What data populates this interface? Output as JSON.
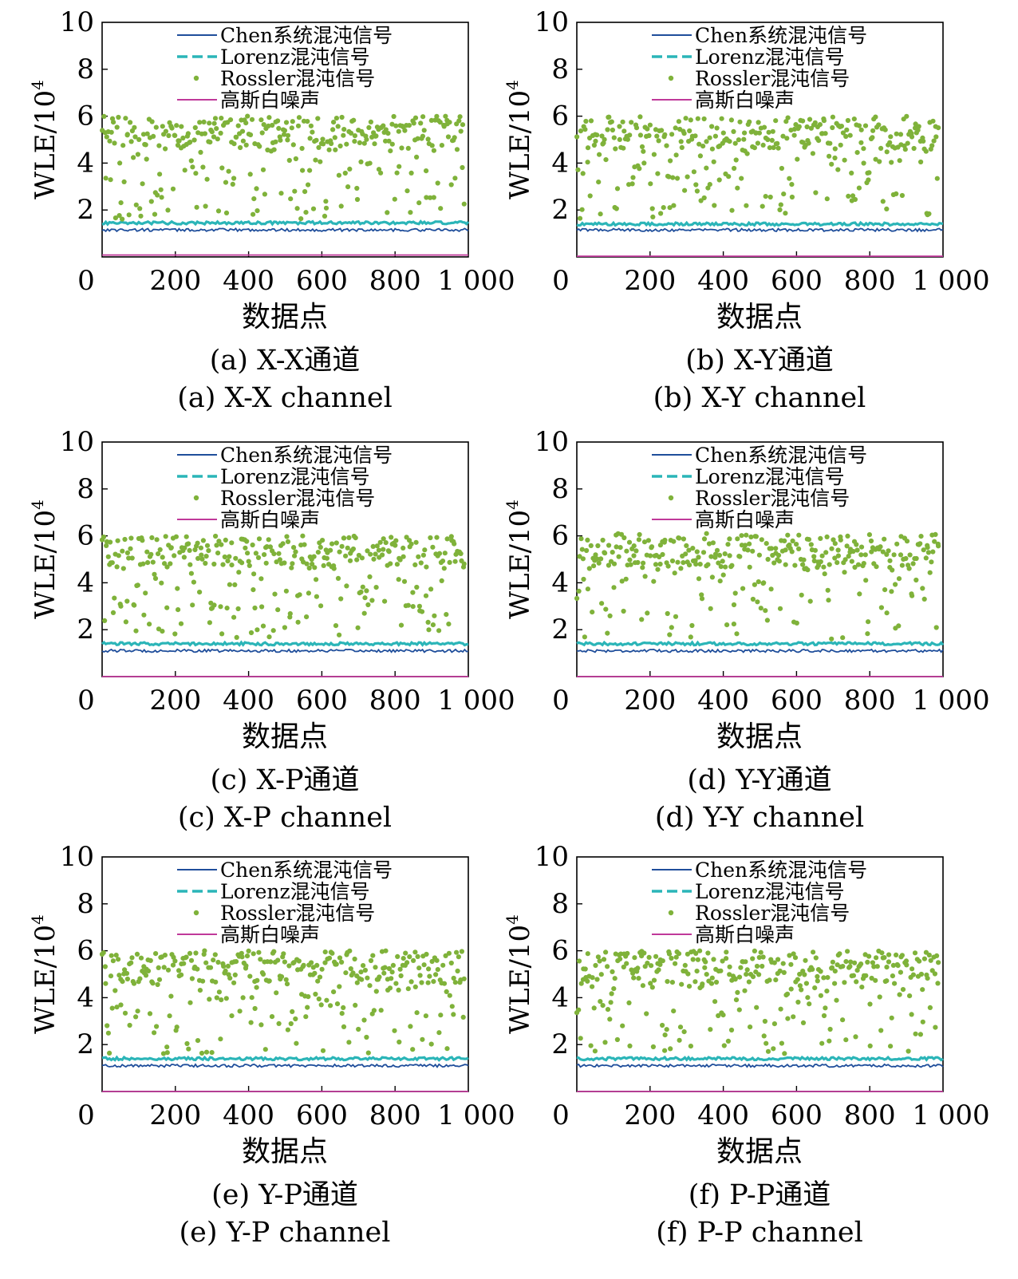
{
  "colors": {
    "chen": "#1f4e9b",
    "lorenz": "#2bb5b8",
    "rossler": "#7fb23a",
    "gauss": "#c0399a",
    "axis": "#000000"
  },
  "chart_data": [
    {
      "type": "line",
      "panel": "a",
      "caption_cn": "(a) X-X通道",
      "caption_en": "(a) X-X channel",
      "xlabel": "数据点",
      "ylabel": "WLE/10",
      "ylabel_sup": "4",
      "xlim": [
        0,
        1000
      ],
      "ylim": [
        0,
        10
      ],
      "xticks": [
        "0",
        "200",
        "400",
        "600",
        "800",
        "1 000"
      ],
      "yticks": [
        "2",
        "4",
        "6",
        "8",
        "10"
      ],
      "series": [
        {
          "name": "Chen系统混沌信号",
          "style": "solid",
          "level": 1.15
        },
        {
          "name": "Lorenz混沌信号",
          "style": "dashed",
          "level": 1.45
        },
        {
          "name": "Rossler混沌信号",
          "style": "dots",
          "range": [
            1.6,
            6.0
          ],
          "center": 5.2
        },
        {
          "name": "高斯白噪声",
          "style": "solid",
          "level": 0.08
        }
      ]
    },
    {
      "type": "line",
      "panel": "b",
      "caption_cn": "(b) X-Y通道",
      "caption_en": "(b) X-Y channel",
      "xlabel": "数据点",
      "ylabel": "WLE/10",
      "ylabel_sup": "4",
      "xlim": [
        0,
        1000
      ],
      "ylim": [
        0,
        10
      ],
      "xticks": [
        "0",
        "200",
        "400",
        "600",
        "800",
        "1 000"
      ],
      "yticks": [
        "2",
        "4",
        "6",
        "8",
        "10"
      ],
      "series": [
        {
          "name": "Chen系统混沌信号",
          "style": "solid",
          "level": 1.15
        },
        {
          "name": "Lorenz混沌信号",
          "style": "dashed",
          "level": 1.4
        },
        {
          "name": "Rossler混沌信号",
          "style": "dots",
          "range": [
            1.6,
            6.0
          ],
          "center": 5.2
        },
        {
          "name": "高斯白噪声",
          "style": "solid",
          "level": 0.03
        }
      ]
    },
    {
      "type": "line",
      "panel": "c",
      "caption_cn": "(c) X-P通道",
      "caption_en": "(c) X-P channel",
      "xlabel": "数据点",
      "ylabel": "WLE/10",
      "ylabel_sup": "4",
      "xlim": [
        0,
        1000
      ],
      "ylim": [
        0,
        10
      ],
      "xticks": [
        "0",
        "200",
        "400",
        "600",
        "800",
        "1 000"
      ],
      "yticks": [
        "2",
        "4",
        "6",
        "8",
        "10"
      ],
      "series": [
        {
          "name": "Chen系统混沌信号",
          "style": "solid",
          "level": 1.1
        },
        {
          "name": "Lorenz混沌信号",
          "style": "dashed",
          "level": 1.4
        },
        {
          "name": "Rossler混沌信号",
          "style": "dots",
          "range": [
            1.6,
            6.0
          ],
          "center": 5.2
        },
        {
          "name": "高斯白噪声",
          "style": "solid",
          "level": 0.0
        }
      ]
    },
    {
      "type": "line",
      "panel": "d",
      "caption_cn": "(d) Y-Y通道",
      "caption_en": "(d) Y-Y channel",
      "xlabel": "数据点",
      "ylabel": "WLE/10",
      "ylabel_sup": "4",
      "xlim": [
        0,
        1000
      ],
      "ylim": [
        0,
        10
      ],
      "xticks": [
        "0",
        "200",
        "400",
        "600",
        "800",
        "1 000"
      ],
      "yticks": [
        "2",
        "4",
        "6",
        "8",
        "10"
      ],
      "series": [
        {
          "name": "Chen系统混沌信号",
          "style": "solid",
          "level": 1.1
        },
        {
          "name": "Lorenz混沌信号",
          "style": "dashed",
          "level": 1.4
        },
        {
          "name": "Rossler混沌信号",
          "style": "dots",
          "range": [
            1.6,
            6.1
          ],
          "center": 5.2
        },
        {
          "name": "高斯白噪声",
          "style": "solid",
          "level": 0.0
        }
      ]
    },
    {
      "type": "line",
      "panel": "e",
      "caption_cn": "(e) Y-P通道",
      "caption_en": "(e) Y-P channel",
      "xlabel": "数据点",
      "ylabel": "WLE/10",
      "ylabel_sup": "4",
      "xlim": [
        0,
        1000
      ],
      "ylim": [
        0,
        10
      ],
      "xticks": [
        "0",
        "200",
        "400",
        "600",
        "800",
        "1 000"
      ],
      "yticks": [
        "2",
        "4",
        "6",
        "8",
        "10"
      ],
      "series": [
        {
          "name": "Chen系统混沌信号",
          "style": "solid",
          "level": 1.1
        },
        {
          "name": "Lorenz混沌信号",
          "style": "dashed",
          "level": 1.4
        },
        {
          "name": "Rossler混沌信号",
          "style": "dots",
          "range": [
            1.6,
            6.0
          ],
          "center": 5.2
        },
        {
          "name": "高斯白噪声",
          "style": "solid",
          "level": 0.0
        }
      ]
    },
    {
      "type": "line",
      "panel": "f",
      "caption_cn": "(f) P-P通道",
      "caption_en": "(f) P-P channel",
      "xlabel": "数据点",
      "ylabel": "WLE/10",
      "ylabel_sup": "4",
      "xlim": [
        0,
        1000
      ],
      "ylim": [
        0,
        10
      ],
      "xticks": [
        "0",
        "200",
        "400",
        "600",
        "800",
        "1 000"
      ],
      "yticks": [
        "2",
        "4",
        "6",
        "8",
        "10"
      ],
      "series": [
        {
          "name": "Chen系统混沌信号",
          "style": "solid",
          "level": 1.1
        },
        {
          "name": "Lorenz混沌信号",
          "style": "dashed",
          "level": 1.4
        },
        {
          "name": "Rossler混沌信号",
          "style": "dots",
          "range": [
            1.6,
            6.0
          ],
          "center": 5.2
        },
        {
          "name": "高斯白噪声",
          "style": "solid",
          "level": 0.0
        }
      ]
    }
  ]
}
